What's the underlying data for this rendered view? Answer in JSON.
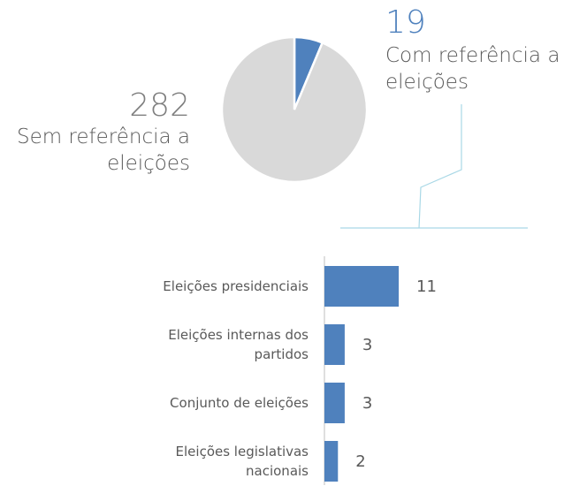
{
  "chart_data": [
    {
      "type": "pie",
      "categories": [
        "Sem referência a\neleições",
        "Com referência a\neleições"
      ],
      "values": [
        282,
        19
      ],
      "colors": [
        "#d9d9d9",
        "#4f81bd"
      ]
    },
    {
      "type": "barh",
      "categories": [
        "Eleições presidenciais",
        "Eleições internas dos\npartidos",
        "Conjunto de eleições",
        "Eleições legislativas\nnacionais"
      ],
      "values": [
        11,
        3,
        3,
        2
      ],
      "color": "#4f81bd"
    }
  ]
}
